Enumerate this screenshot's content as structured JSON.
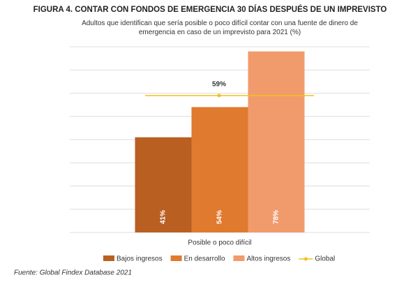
{
  "chart_data": {
    "type": "bar",
    "title": "FIGURA 4. CONTAR CON FONDOS DE EMERGENCIA 30 DÍAS DESPUÉS DE UN IMPREVISTO",
    "subtitle": "Adultos que identifican que sería posible o poco difícil contar con una fuente de dinero de emergencia en caso de un imprevisto para 2021 (%)",
    "categories": [
      "Posible o poco difícil"
    ],
    "series": [
      {
        "name": "Bajos ingresos",
        "color": "#b95f22",
        "values": [
          41
        ],
        "value_labels": [
          "41%"
        ]
      },
      {
        "name": "En desarrollo",
        "color": "#e07a2f",
        "values": [
          54
        ],
        "value_labels": [
          "54%"
        ]
      },
      {
        "name": "Altos ingresos",
        "color": "#f19b6d",
        "values": [
          78
        ],
        "value_labels": [
          "78%"
        ]
      }
    ],
    "reference": {
      "name": "Global",
      "color": "#f2c01c",
      "value": 59,
      "value_label": "59%"
    },
    "ylim": [
      0,
      80
    ],
    "yticks": [
      0,
      10,
      20,
      30,
      40,
      50,
      60,
      70,
      80
    ],
    "grid": true,
    "source": "Fuente: Global Findex Database 2021"
  }
}
